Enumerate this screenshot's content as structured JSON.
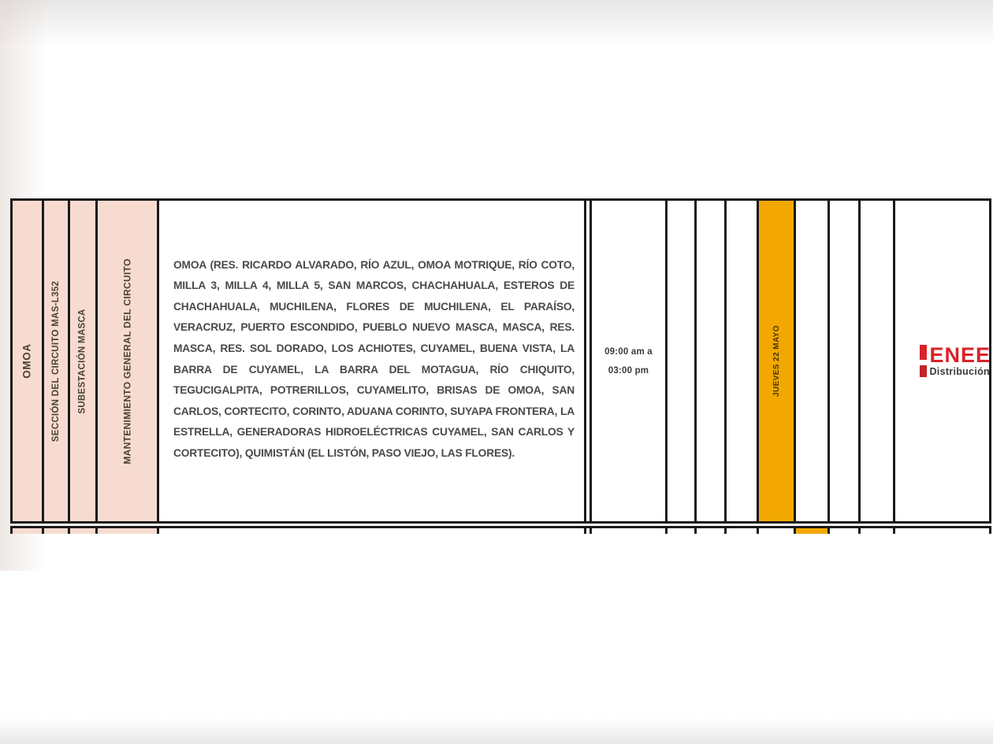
{
  "schedule": {
    "region": "OMOA",
    "circuit_section": "SECCIÓN DEL CIRCUITO MAS-L352",
    "substation": "SUBESTACIÓN MASCA",
    "work_type": "MANTENIMIENTO GENERAL DEL CIRCUITO",
    "affected_areas": "OMOA (RES. RICARDO ALVARADO, RÍO AZUL, OMOA MOTRIQUE, RÍO COTO, MILLA 3, MILLA 4, MILLA 5, SAN MARCOS, CHACHAHUALA, ESTEROS DE CHACHAHUALA, MUCHILENA, FLORES DE MUCHILENA, EL PARAÍSO, VERACRUZ, PUERTO ESCONDIDO, PUEBLO NUEVO MASCA, MASCA, RES. MASCA, RES. SOL DORADO, LOS ACHIOTES, CUYAMEL, BUENA VISTA, LA BARRA DE CUYAMEL, LA BARRA DEL MOTAGUA, RÍO CHIQUITO, TEGUCIGALPITA, POTRERILLOS, CUYAMELITO, BRISAS DE OMOA, SAN CARLOS, CORTECITO, CORINTO, ADUANA CORINTO, SUYAPA FRONTERA, LA ESTRELLA, GENERADORAS HIDROELÉCTRICAS CUYAMEL, SAN CARLOS Y CORTECITO), QUIMISTÁN (EL LISTÓN, PASO VIEJO, LAS FLORES).",
    "time": {
      "line1": "09:00 am a",
      "line2": "03:00 pm"
    },
    "scheduled_day": "JUEVES 22 MAYO"
  },
  "calendar": {
    "day_columns_total": 7,
    "highlighted_column_current_row": 4,
    "highlighted_column_next_row": 5
  },
  "brand": {
    "name": "ENEE",
    "subtitle": "Distribución"
  },
  "colors": {
    "header_pink": "#F8DBD0",
    "highlight_orange": "#F2A800",
    "table_border": "#1A1A1A",
    "brand_red": "#D8232A",
    "body_text": "#4A4A4A"
  }
}
